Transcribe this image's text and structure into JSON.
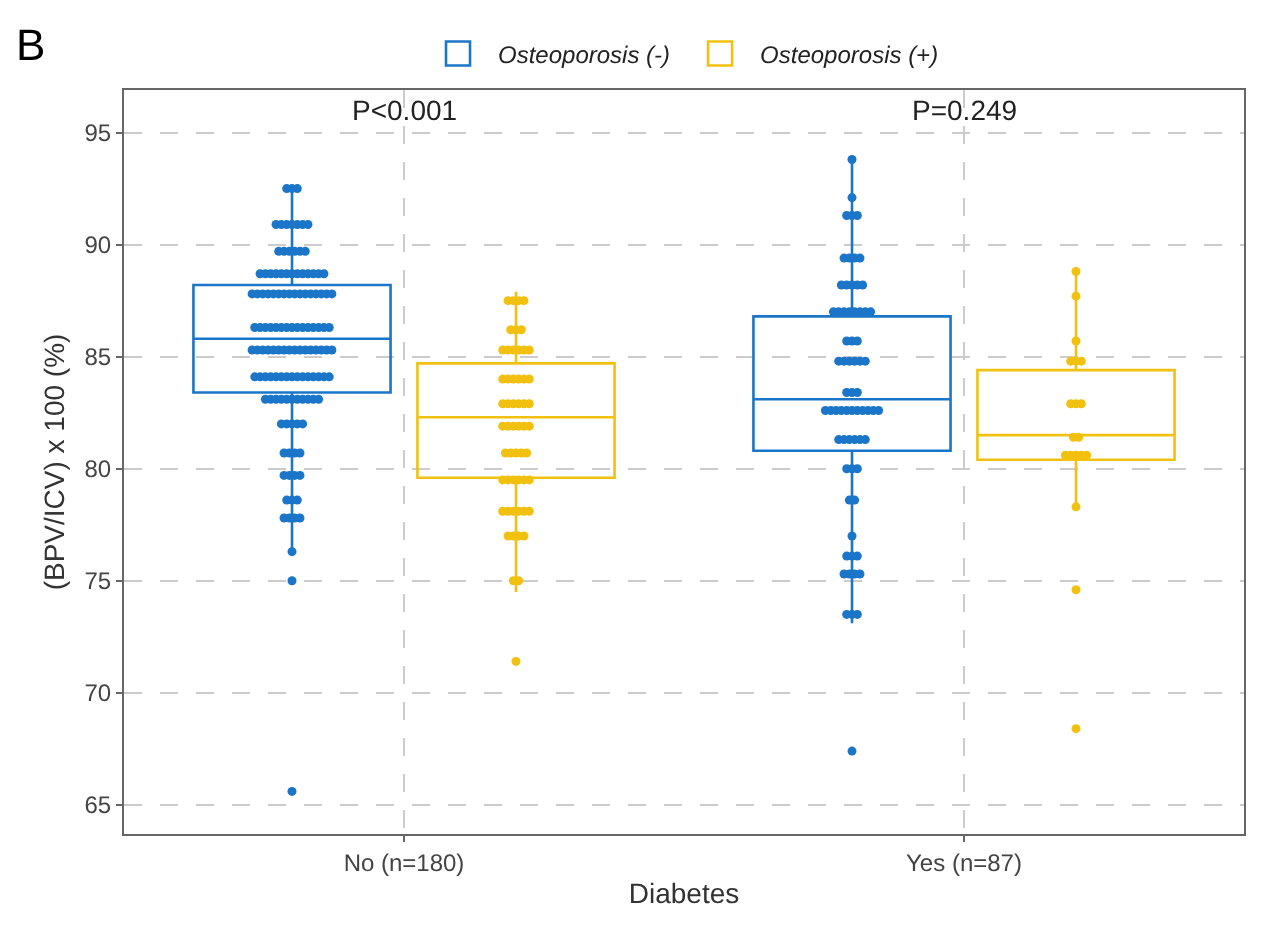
{
  "chart_data": {
    "type": "box",
    "xlabel": "Diabetes",
    "ylabel": "(BPV/ICV) x 100 (%)",
    "categories": [
      "No (n=180)",
      "Yes (n=87)"
    ],
    "ylim": [
      63.7,
      96.9
    ],
    "yticks": [
      65,
      70,
      75,
      80,
      85,
      90,
      95
    ],
    "grid": true,
    "legend": "top",
    "annotations": [
      "B",
      "P<0.001",
      "P=0.249"
    ],
    "series": [
      {
        "name": "Osteoporosis (-)",
        "color": "#1b75c8",
        "boxes": [
          {
            "low": 76.3,
            "q1": 83.4,
            "median": 85.8,
            "q3": 88.2,
            "high": 92.4
          },
          {
            "low": 73.1,
            "q1": 80.8,
            "median": 83.1,
            "q3": 86.8,
            "high": 93.8
          }
        ]
      },
      {
        "name": "Osteoporosis (+)",
        "color": "#f2c10f",
        "boxes": [
          {
            "low": 74.5,
            "q1": 79.6,
            "median": 82.3,
            "q3": 84.7,
            "high": 87.9
          },
          {
            "low": 78.3,
            "q1": 80.4,
            "median": 81.5,
            "q3": 84.4,
            "high": 88.8
          }
        ]
      },
      {
        "type": "scatter",
        "color": "#1b75c8",
        "x": [
          "No (n=180)",
          "No (n=180)",
          "No (n=180)",
          "No (n=180)",
          "No (n=180)",
          "No (n=180)",
          "No (n=180)",
          "No (n=180)",
          "No (n=180)",
          "No (n=180)",
          "No (n=180)",
          "No (n=180)",
          "No (n=180)",
          "No (n=180)",
          "No (n=180)",
          "No (n=180)",
          "No (n=180)",
          "No (n=180)",
          "No (n=180)",
          "No (n=180)",
          "No (n=180)",
          "No (n=180)",
          "No (n=180)",
          "No (n=180)",
          "No (n=180)",
          "No (n=180)",
          "No (n=180)",
          "No (n=180)",
          "No (n=180)",
          "No (n=180)",
          "No (n=180)",
          "No (n=180)",
          "No (n=180)",
          "No (n=180)",
          "No (n=180)",
          "No (n=180)",
          "No (n=180)",
          "No (n=180)",
          "No (n=180)",
          "No (n=180)",
          "No (n=180)",
          "No (n=180)",
          "No (n=180)",
          "No (n=180)",
          "No (n=180)",
          "No (n=180)",
          "No (n=180)",
          "No (n=180)",
          "No (n=180)",
          "No (n=180)",
          "No (n=180)",
          "No (n=180)",
          "No (n=180)",
          "No (n=180)",
          "No (n=180)",
          "No (n=180)",
          "No (n=180)",
          "No (n=180)",
          "No (n=180)",
          "No (n=180)",
          "No (n=180)",
          "No (n=180)",
          "No (n=180)",
          "No (n=180)",
          "No (n=180)",
          "No (n=180)",
          "No (n=180)",
          "No (n=180)",
          "No (n=180)",
          "No (n=180)",
          "No (n=180)",
          "No (n=180)",
          "No (n=180)",
          "No (n=180)",
          "No (n=180)",
          "No (n=180)",
          "No (n=180)",
          "No (n=180)",
          "No (n=180)",
          "No (n=180)",
          "No (n=180)",
          "No (n=180)",
          "No (n=180)",
          "No (n=180)",
          "No (n=180)",
          "No (n=180)",
          "No (n=180)",
          "No (n=180)",
          "No (n=180)",
          "No (n=180)",
          "No (n=180)",
          "No (n=180)",
          "No (n=180)",
          "No (n=180)",
          "No (n=180)",
          "No (n=180)",
          "No (n=180)",
          "No (n=180)",
          "No (n=180)",
          "No (n=180)",
          "No (n=180)",
          "No (n=180)",
          "No (n=180)",
          "No (n=180)",
          "No (n=180)",
          "No (n=180)",
          "No (n=180)",
          "No (n=180)",
          "No (n=180)",
          "No (n=180)",
          "No (n=180)",
          "No (n=180)",
          "No (n=180)",
          "No (n=180)",
          "No (n=180)",
          "No (n=180)",
          "No (n=180)",
          "No (n=180)",
          "No (n=180)",
          "No (n=180)",
          "No (n=180)",
          "No (n=180)",
          "No (n=180)",
          "No (n=180)",
          "No (n=180)",
          "Yes (n=87)",
          "Yes (n=87)",
          "Yes (n=87)",
          "Yes (n=87)",
          "Yes (n=87)",
          "Yes (n=87)",
          "Yes (n=87)",
          "Yes (n=87)",
          "Yes (n=87)",
          "Yes (n=87)",
          "Yes (n=87)",
          "Yes (n=87)",
          "Yes (n=87)",
          "Yes (n=87)",
          "Yes (n=87)",
          "Yes (n=87)",
          "Yes (n=87)",
          "Yes (n=87)",
          "Yes (n=87)",
          "Yes (n=87)",
          "Yes (n=87)",
          "Yes (n=87)",
          "Yes (n=87)",
          "Yes (n=87)",
          "Yes (n=87)",
          "Yes (n=87)",
          "Yes (n=87)",
          "Yes (n=87)",
          "Yes (n=87)",
          "Yes (n=87)",
          "Yes (n=87)",
          "Yes (n=87)",
          "Yes (n=87)",
          "Yes (n=87)",
          "Yes (n=87)",
          "Yes (n=87)",
          "Yes (n=87)",
          "Yes (n=87)",
          "Yes (n=87)",
          "Yes (n=87)",
          "Yes (n=87)",
          "Yes (n=87)",
          "Yes (n=87)",
          "Yes (n=87)",
          "Yes (n=87)",
          "Yes (n=87)",
          "Yes (n=87)",
          "Yes (n=87)",
          "Yes (n=87)",
          "Yes (n=87)",
          "Yes (n=87)",
          "Yes (n=87)",
          "Yes (n=87)",
          "Yes (n=87)",
          "Yes (n=87)",
          "Yes (n=87)",
          "Yes (n=87)",
          "Yes (n=87)",
          "Yes (n=87)",
          "Yes (n=87)",
          "Yes (n=87)",
          "Yes (n=87)",
          "Yes (n=87)",
          "Yes (n=87)",
          "Yes (n=87)",
          "Yes (n=87)",
          "Yes (n=87)",
          "Yes (n=87)"
        ],
        "values": [
          92.5,
          92.5,
          92.5,
          90.9,
          90.9,
          90.9,
          90.9,
          90.9,
          90.9,
          90.9,
          89.7,
          89.7,
          89.7,
          89.7,
          89.7,
          89.7,
          88.7,
          88.7,
          88.7,
          88.7,
          88.7,
          88.7,
          88.7,
          88.7,
          88.7,
          88.7,
          88.7,
          88.7,
          88.7,
          87.8,
          87.8,
          87.8,
          87.8,
          87.8,
          87.8,
          87.8,
          87.8,
          87.8,
          87.8,
          87.8,
          87.8,
          87.8,
          87.8,
          87.8,
          87.8,
          86.3,
          86.3,
          86.3,
          86.3,
          86.3,
          86.3,
          86.3,
          86.3,
          86.3,
          86.3,
          86.3,
          86.3,
          86.3,
          86.3,
          86.3,
          85.3,
          85.3,
          85.3,
          85.3,
          85.3,
          85.3,
          85.3,
          85.3,
          85.3,
          85.3,
          85.3,
          85.3,
          85.3,
          85.3,
          85.3,
          85.3,
          84.1,
          84.1,
          84.1,
          84.1,
          84.1,
          84.1,
          84.1,
          84.1,
          84.1,
          84.1,
          84.1,
          84.1,
          84.1,
          84.1,
          84.1,
          83.1,
          83.1,
          83.1,
          83.1,
          83.1,
          83.1,
          83.1,
          83.1,
          83.1,
          83.1,
          83.1,
          82.0,
          82.0,
          82.0,
          82.0,
          82.0,
          80.7,
          80.7,
          80.7,
          80.7,
          79.7,
          79.7,
          79.7,
          79.7,
          78.6,
          78.6,
          78.6,
          77.8,
          77.8,
          77.8,
          77.8,
          76.3,
          75.0,
          65.6,
          93.8,
          92.1,
          91.3,
          91.3,
          91.3,
          89.4,
          89.4,
          89.4,
          89.4,
          88.2,
          88.2,
          88.2,
          88.2,
          88.2,
          87.0,
          87.0,
          87.0,
          87.0,
          87.0,
          87.0,
          87.0,
          87.0,
          85.7,
          85.7,
          85.7,
          84.8,
          84.8,
          84.8,
          84.8,
          84.8,
          84.8,
          83.4,
          83.4,
          83.4,
          82.6,
          82.6,
          82.6,
          82.6,
          82.6,
          82.6,
          82.6,
          82.6,
          82.6,
          82.6,
          82.6,
          81.3,
          81.3,
          81.3,
          81.3,
          81.3,
          81.3,
          80.0,
          80.0,
          80.0,
          78.6,
          78.6,
          77.0,
          76.1,
          76.1,
          76.1,
          75.3,
          75.3,
          75.3,
          75.3,
          73.5,
          73.5,
          73.5,
          67.4
        ]
      },
      {
        "type": "scatter",
        "color": "#f2c10f",
        "x": [
          "No (n=180)",
          "No (n=180)",
          "No (n=180)",
          "No (n=180)",
          "No (n=180)",
          "No (n=180)",
          "No (n=180)",
          "No (n=180)",
          "No (n=180)",
          "No (n=180)",
          "No (n=180)",
          "No (n=180)",
          "No (n=180)",
          "No (n=180)",
          "No (n=180)",
          "No (n=180)",
          "No (n=180)",
          "No (n=180)",
          "No (n=180)",
          "No (n=180)",
          "No (n=180)",
          "No (n=180)",
          "No (n=180)",
          "No (n=180)",
          "No (n=180)",
          "No (n=180)",
          "No (n=180)",
          "No (n=180)",
          "No (n=180)",
          "No (n=180)",
          "No (n=180)",
          "No (n=180)",
          "No (n=180)",
          "No (n=180)",
          "No (n=180)",
          "No (n=180)",
          "No (n=180)",
          "No (n=180)",
          "No (n=180)",
          "No (n=180)",
          "No (n=180)",
          "No (n=180)",
          "No (n=180)",
          "No (n=180)",
          "No (n=180)",
          "No (n=180)",
          "No (n=180)",
          "No (n=180)",
          "No (n=180)",
          "No (n=180)",
          "No (n=180)",
          "No (n=180)",
          "No (n=180)",
          "No (n=180)",
          "No (n=180)",
          "Yes (n=87)",
          "Yes (n=87)",
          "Yes (n=87)",
          "Yes (n=87)",
          "Yes (n=87)",
          "Yes (n=87)",
          "Yes (n=87)",
          "Yes (n=87)",
          "Yes (n=87)",
          "Yes (n=87)",
          "Yes (n=87)",
          "Yes (n=87)",
          "Yes (n=87)",
          "Yes (n=87)",
          "Yes (n=87)",
          "Yes (n=87)",
          "Yes (n=87)",
          "Yes (n=87)",
          "Yes (n=87)"
        ],
        "values": [
          87.5,
          87.5,
          87.5,
          87.5,
          86.2,
          86.2,
          86.2,
          85.3,
          85.3,
          85.3,
          85.3,
          85.3,
          85.3,
          84.0,
          84.0,
          84.0,
          84.0,
          84.0,
          84.0,
          82.9,
          82.9,
          82.9,
          82.9,
          82.9,
          82.9,
          81.9,
          81.9,
          81.9,
          81.9,
          81.9,
          81.9,
          80.7,
          80.7,
          80.7,
          80.7,
          80.7,
          79.5,
          79.5,
          79.5,
          79.5,
          79.5,
          79.5,
          78.1,
          78.1,
          78.1,
          78.1,
          78.1,
          78.1,
          77.0,
          77.0,
          77.0,
          77.0,
          75.0,
          75.0,
          71.4,
          88.8,
          87.7,
          85.7,
          84.8,
          84.8,
          84.8,
          82.9,
          82.9,
          82.9,
          81.4,
          81.4,
          80.6,
          80.6,
          80.6,
          80.6,
          80.6,
          78.3,
          74.6,
          68.4
        ]
      }
    ]
  }
}
